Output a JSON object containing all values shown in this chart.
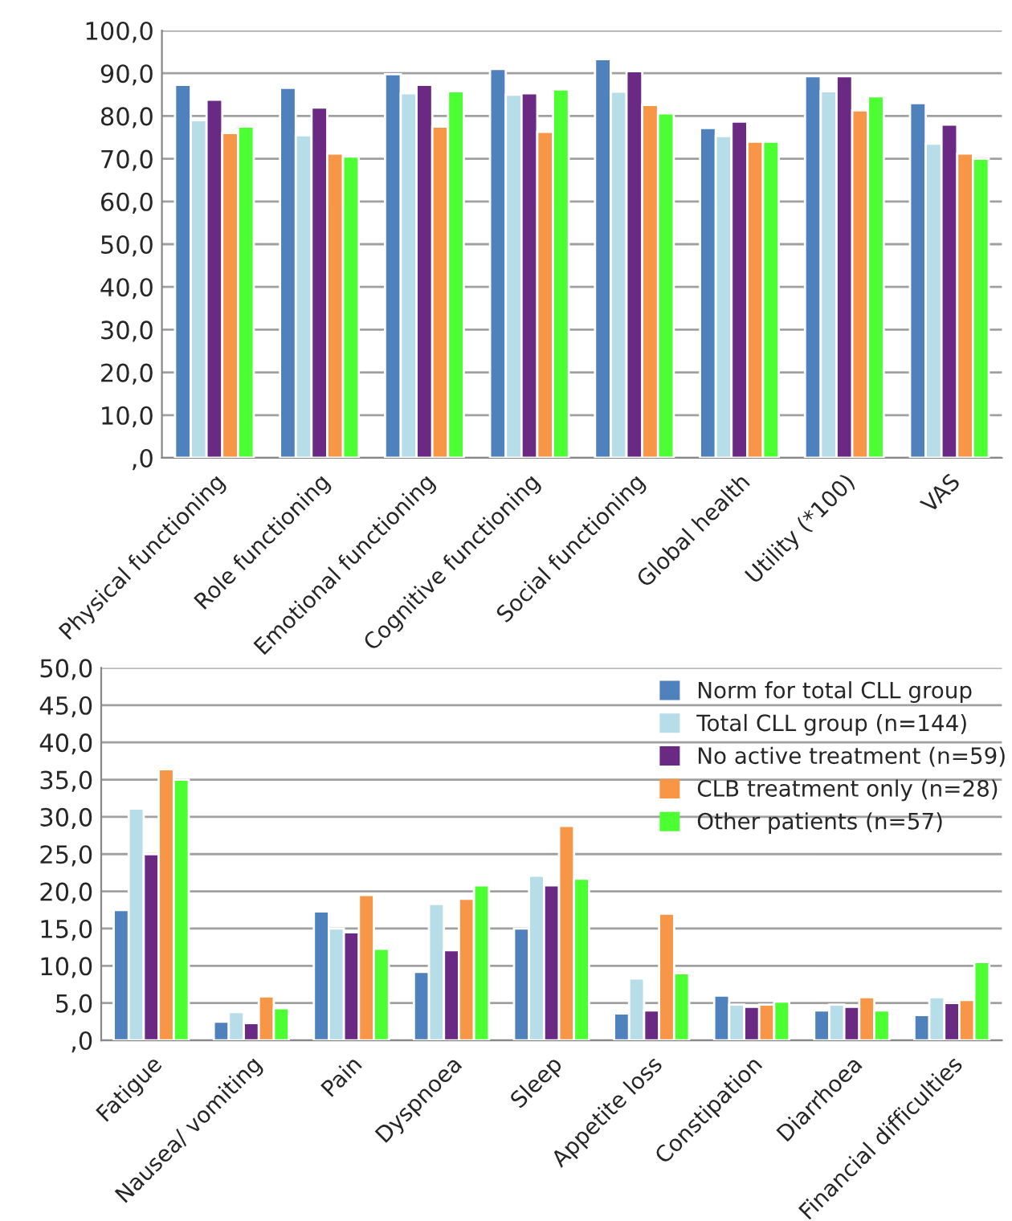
{
  "chart_data": [
    {
      "type": "bar",
      "categories": [
        "Physical functioning",
        "Role functioning",
        "Emotional functioning",
        "Cognitive functioning",
        "Social functioning",
        "Global health",
        "Utility (*100)",
        "VAS"
      ],
      "series": [
        {
          "color": "#4f81bd",
          "values": [
            87.3,
            86.6,
            89.8,
            91.0,
            93.3,
            77.2,
            89.3,
            83.0
          ]
        },
        {
          "color": "#b7dde8",
          "values": [
            79.0,
            75.5,
            85.3,
            85.0,
            85.7,
            75.3,
            85.8,
            73.5
          ]
        },
        {
          "color": "#6a2a83",
          "values": [
            83.8,
            82.0,
            87.3,
            85.3,
            90.5,
            78.7,
            89.3,
            78.0
          ]
        },
        {
          "color": "#f79646",
          "values": [
            76.0,
            71.2,
            77.5,
            76.3,
            82.6,
            74.0,
            81.3,
            71.2
          ]
        },
        {
          "color": "#4cff33",
          "values": [
            77.5,
            70.5,
            85.8,
            86.2,
            80.6,
            74.0,
            84.6,
            70.0
          ]
        }
      ],
      "ylim": [
        0,
        100
      ],
      "yticks": [
        {
          "value": 0,
          "label": ",0"
        },
        {
          "value": 10,
          "label": "10,0"
        },
        {
          "value": 20,
          "label": "20,0"
        },
        {
          "value": 30,
          "label": "30,0"
        },
        {
          "value": 40,
          "label": "40,0"
        },
        {
          "value": 50,
          "label": "50,0"
        },
        {
          "value": 60,
          "label": "60,0"
        },
        {
          "value": 70,
          "label": "70,0"
        },
        {
          "value": 80,
          "label": "80,0"
        },
        {
          "value": 90,
          "label": "90,0"
        },
        {
          "value": 100,
          "label": "100,0"
        }
      ],
      "grid": "y"
    },
    {
      "type": "bar",
      "categories": [
        "Fatigue",
        "Nausea/ vomiting",
        "Pain",
        "Dyspnoea",
        "Sleep",
        "Appetite loss",
        "Constipation",
        "Diarrhoea",
        "Financial difficulties"
      ],
      "series": [
        {
          "name": "Norm for total CLL group",
          "color": "#4f81bd",
          "values": [
            17.5,
            2.5,
            17.3,
            9.2,
            15.0,
            3.6,
            6.0,
            4.0,
            3.4
          ]
        },
        {
          "name": "Total CLL group (n=144)",
          "color": "#b7dde8",
          "values": [
            31.1,
            3.8,
            15.0,
            18.3,
            22.1,
            8.3,
            4.8,
            4.8,
            5.8
          ]
        },
        {
          "name": "No active treatment (n=59)",
          "color": "#6a2a83",
          "values": [
            25.0,
            2.3,
            14.5,
            12.1,
            20.8,
            4.0,
            4.5,
            4.5,
            5.0
          ]
        },
        {
          "name": "CLB treatment only (n=28)",
          "color": "#f79646",
          "values": [
            36.4,
            5.9,
            19.5,
            19.0,
            28.8,
            17.0,
            4.8,
            5.8,
            5.4
          ]
        },
        {
          "name": "Other patients (n=57)",
          "color": "#4cff33",
          "values": [
            35.0,
            4.3,
            12.3,
            20.8,
            21.7,
            9.0,
            5.2,
            4.0,
            10.5
          ]
        }
      ],
      "ylim": [
        0,
        50
      ],
      "yticks": [
        {
          "value": 0,
          "label": ",0"
        },
        {
          "value": 5,
          "label": "5,0"
        },
        {
          "value": 10,
          "label": "10,0"
        },
        {
          "value": 15,
          "label": "15,0"
        },
        {
          "value": 20,
          "label": "20,0"
        },
        {
          "value": 25,
          "label": "25,0"
        },
        {
          "value": 30,
          "label": "30,0"
        },
        {
          "value": 35,
          "label": "35,0"
        },
        {
          "value": 40,
          "label": "40,0"
        },
        {
          "value": 45,
          "label": "45,0"
        },
        {
          "value": 50,
          "label": "50,0"
        }
      ],
      "grid": "y",
      "legend": "top right"
    }
  ]
}
